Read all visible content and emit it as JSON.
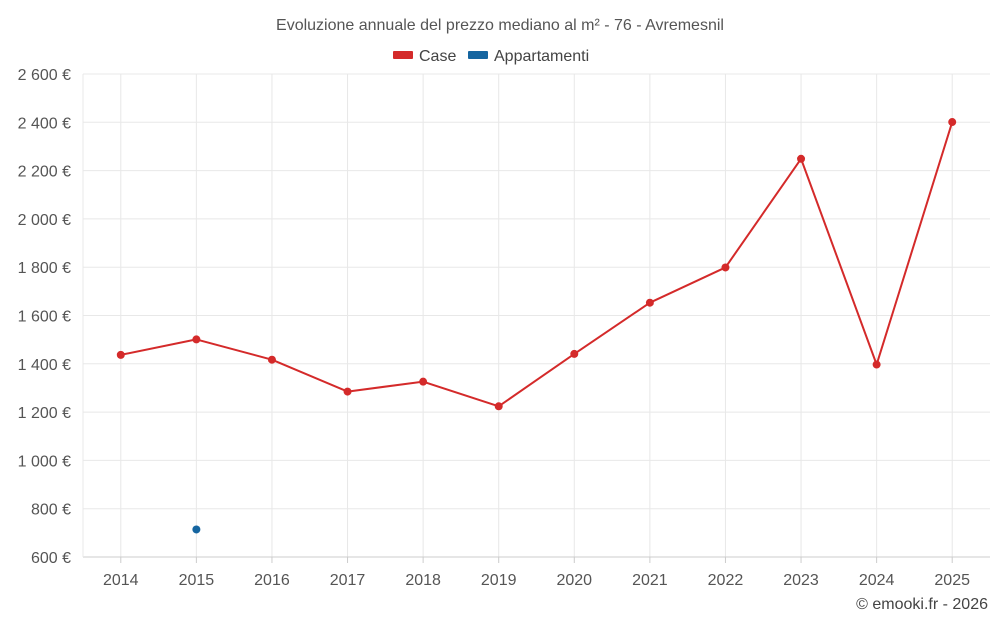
{
  "chart_data": {
    "type": "line",
    "title": "Evoluzione annuale del prezzo mediano al m² - 76 - Avremesnil",
    "categories": [
      "2014",
      "2015",
      "2016",
      "2017",
      "2018",
      "2019",
      "2020",
      "2021",
      "2022",
      "2023",
      "2024",
      "2025"
    ],
    "series": [
      {
        "name": "Case",
        "color": "#d42a2a",
        "values": [
          1437,
          1501,
          1417,
          1285,
          1326,
          1224,
          1441,
          1653,
          1799,
          2249,
          1397,
          2401
        ]
      },
      {
        "name": "Appartamenti",
        "color": "#1565a0",
        "values": [
          null,
          714,
          null,
          null,
          null,
          null,
          null,
          null,
          null,
          null,
          null,
          null
        ]
      }
    ],
    "ylim": [
      600,
      2600
    ],
    "yticks": [
      600,
      800,
      1000,
      1200,
      1400,
      1600,
      1800,
      2000,
      2200,
      2400,
      2600
    ],
    "ytick_labels": [
      "600 €",
      "800 €",
      "1 000 €",
      "1 200 €",
      "1 400 €",
      "1 600 €",
      "1 800 €",
      "2 000 €",
      "2 200 €",
      "2 400 €",
      "2 600 €"
    ],
    "xlabel": "",
    "ylabel": "",
    "grid": true,
    "legend_position": "top-center",
    "credit": "© emooki.fr - 2026"
  }
}
